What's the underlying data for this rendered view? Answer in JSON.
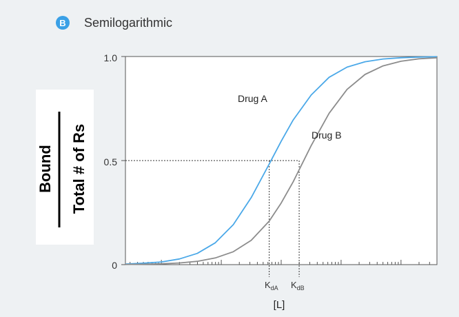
{
  "chart_data": {
    "type": "line",
    "panel_letter": "B",
    "title": "Semilogarithmic",
    "xlabel": "[L]",
    "ylabel_numerator": "Bound",
    "ylabel_denominator": "Total # of Rs",
    "x_scale": "log",
    "ylim": [
      0,
      1.0
    ],
    "yticks": [
      "0",
      "0.5",
      "1.0"
    ],
    "grid": false,
    "x": [
      -2.6,
      -2.3,
      -2.0,
      -1.7,
      -1.4,
      -1.1,
      -0.8,
      -0.5,
      -0.2,
      0.0,
      0.2,
      0.5,
      0.8,
      1.1,
      1.4,
      1.7,
      2.0,
      2.3,
      2.6
    ],
    "series": [
      {
        "name": "Drug A",
        "color": "#4aa8e8",
        "values": [
          0.003,
          0.007,
          0.013,
          0.027,
          0.054,
          0.105,
          0.192,
          0.322,
          0.483,
          0.593,
          0.695,
          0.815,
          0.9,
          0.949,
          0.975,
          0.988,
          0.994,
          0.997,
          0.999
        ]
      },
      {
        "name": "Drug B",
        "color": "#8c8c8c",
        "values": [
          0.001,
          0.002,
          0.004,
          0.008,
          0.016,
          0.032,
          0.062,
          0.117,
          0.209,
          0.296,
          0.398,
          0.572,
          0.727,
          0.842,
          0.914,
          0.955,
          0.977,
          0.989,
          0.994
        ]
      }
    ],
    "reference": {
      "y": 0.5,
      "kd_a_x": -0.2,
      "kd_b_x": 0.3
    },
    "annotations": {
      "kd_a": {
        "main": "K",
        "sub": "dA"
      },
      "kd_b": {
        "main": "K",
        "sub": "dB"
      }
    }
  }
}
